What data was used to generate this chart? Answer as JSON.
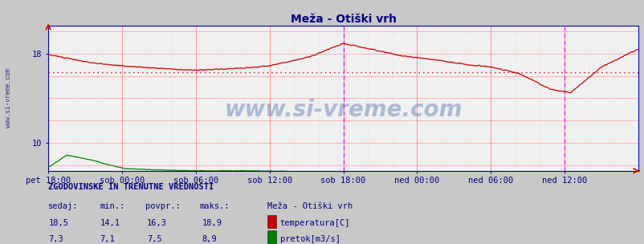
{
  "title": "Meža - Otiški vrh",
  "title_color": "#000080",
  "bg_color": "#c8c8c8",
  "plot_bg_color": "#f0f0f0",
  "grid_color_major": "#ff9999",
  "grid_color_minor": "#ffdddd",
  "x_tick_labels": [
    "pet 18:00",
    "sob 00:00",
    "sob 06:00",
    "sob 12:00",
    "sob 18:00",
    "ned 00:00",
    "ned 06:00",
    "ned 12:00"
  ],
  "x_tick_positions": [
    0,
    72,
    144,
    216,
    288,
    360,
    432,
    504
  ],
  "n_points": 577,
  "temp_color": "#cc0000",
  "flow_color": "#008000",
  "avg_temp_line": 16.3,
  "avg_flow_line": 7.5,
  "y_min": 7.5,
  "y_max": 20.5,
  "y_ticks": [
    10,
    18
  ],
  "watermark": "www.si-vreme.com",
  "watermark_color": "#3355aa",
  "watermark_alpha": 0.35,
  "left_label": "www.si-vreme.com",
  "magenta_line_x": 288,
  "magenta_line_x2": 504,
  "text_color": "#000080",
  "border_color": "#0000cc",
  "spine_color": "#0000cc",
  "temp_xp": [
    0,
    40,
    72,
    120,
    144,
    190,
    216,
    255,
    288,
    315,
    345,
    380,
    410,
    432,
    460,
    490,
    510,
    540,
    576
  ],
  "temp_yp": [
    17.9,
    17.2,
    16.9,
    16.6,
    16.5,
    16.7,
    16.9,
    17.7,
    18.9,
    18.4,
    17.8,
    17.4,
    17.0,
    16.8,
    16.2,
    14.8,
    14.5,
    16.8,
    18.4
  ],
  "flow_xp": [
    0,
    8,
    18,
    30,
    45,
    60,
    75,
    100,
    144,
    200,
    260,
    285,
    295,
    360,
    432,
    504,
    576
  ],
  "flow_yp": [
    7.8,
    8.3,
    8.9,
    8.7,
    8.4,
    8.0,
    7.7,
    7.6,
    7.5,
    7.5,
    7.4,
    7.4,
    7.35,
    7.35,
    7.3,
    7.3,
    7.3
  ],
  "fig_width": 8.03,
  "fig_height": 3.04,
  "dpi": 100
}
